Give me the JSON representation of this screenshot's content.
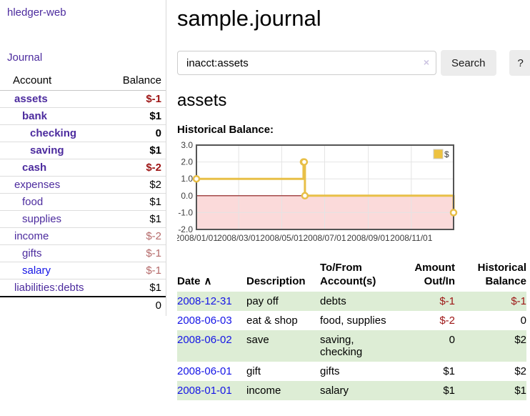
{
  "colors": {
    "purple": "#4c2b9e",
    "blue": "#1414e6",
    "negStrong": "#9d1515",
    "negSoft": "#b56a6a",
    "rowGreen": "#ddedd5"
  },
  "app": {
    "title": "hledger-web"
  },
  "sidebar": {
    "journal_link": "Journal",
    "accounts_table": {
      "headers": {
        "account": "Account",
        "balance": "Balance"
      },
      "rows": [
        {
          "account": "assets",
          "balance": "$-1",
          "indent": 1,
          "current": true
        },
        {
          "account": "bank",
          "balance": "$1",
          "indent": 2,
          "current": true
        },
        {
          "account": "checking",
          "balance": "0",
          "indent": 3,
          "current": true
        },
        {
          "account": "saving",
          "balance": "$1",
          "indent": 3,
          "current": true
        },
        {
          "account": "cash",
          "balance": "$-2",
          "indent": 2,
          "current": true
        },
        {
          "account": "expenses",
          "balance": "$2",
          "indent": 1
        },
        {
          "account": "food",
          "balance": "$1",
          "indent": 2
        },
        {
          "account": "supplies",
          "balance": "$1",
          "indent": 2
        },
        {
          "account": "income",
          "balance": "$-2",
          "indent": 1
        },
        {
          "account": "gifts",
          "balance": "$-1",
          "indent": 2
        },
        {
          "account": "salary",
          "balance": "$-1",
          "indent": 2,
          "visited": false
        },
        {
          "account": "liabilities:debts",
          "balance": "$1",
          "indent": 1
        }
      ],
      "total": "0"
    }
  },
  "main": {
    "title": "sample.journal",
    "search": {
      "value": "inacct:assets",
      "clear_icon": "×",
      "search_button": "Search",
      "help_button": "?"
    },
    "account_heading": "assets",
    "chart_label": "Historical Balance:"
  },
  "chart_data": {
    "type": "line",
    "step": true,
    "title": "Historical Balance:",
    "series": [
      {
        "name": "$",
        "points": [
          {
            "x": "2008-01-01",
            "y": 1
          },
          {
            "x": "2008-06-01",
            "y": 2
          },
          {
            "x": "2008-06-02",
            "y": 2
          },
          {
            "x": "2008-06-03",
            "y": 0
          },
          {
            "x": "2008-12-31",
            "y": -1
          }
        ]
      }
    ],
    "xlim": [
      "2008-01-01",
      "2008-12-31"
    ],
    "ylim": [
      -2,
      3
    ],
    "x_ticks": [
      {
        "x": "2008-01-01",
        "label": "2008/01/01"
      },
      {
        "x": "2008-03-01",
        "label": "2008/03/01"
      },
      {
        "x": "2008-05-01",
        "label": "2008/05/01"
      },
      {
        "x": "2008-07-01",
        "label": "2008/07/01"
      },
      {
        "x": "2008-09-01",
        "label": "2008/09/01"
      },
      {
        "x": "2008-11-01",
        "label": "2008/11/01"
      }
    ],
    "y_ticks": [
      "3.0",
      "2.0",
      "1.0",
      "0.0",
      "-1.0",
      "-2.0"
    ],
    "grid": true,
    "legend_position": "top-right",
    "legend": [
      {
        "name": "$",
        "color": "#edc240"
      }
    ],
    "line_color": "#e8bf47",
    "marker_fill": "#ffffff",
    "negative_region_color": "#fbdada",
    "zero_line_color": "#8b1616",
    "border_color": "#545454",
    "gridline_color": "#e4e4e4",
    "tick_label_color": "#3d3d3d"
  },
  "register": {
    "headers": {
      "date": "Date",
      "description": "Description",
      "tofrom": "To/From Account(s)",
      "amount": "Amount Out/In",
      "balance": "Historical Balance"
    },
    "sort_icon": "∧",
    "rows": [
      {
        "date": "2008-12-31",
        "description": "pay off",
        "accounts": "debts",
        "amount": "$-1",
        "balance": "$-1"
      },
      {
        "date": "2008-06-03",
        "description": "eat & shop",
        "accounts": "food, supplies",
        "amount": "$-2",
        "balance": "0"
      },
      {
        "date": "2008-06-02",
        "description": "save",
        "accounts": "saving, checking",
        "amount": "0",
        "balance": "$2"
      },
      {
        "date": "2008-06-01",
        "description": "gift",
        "accounts": "gifts",
        "amount": "$1",
        "balance": "$2"
      },
      {
        "date": "2008-01-01",
        "description": "income",
        "accounts": "salary",
        "amount": "$1",
        "balance": "$1"
      }
    ]
  }
}
